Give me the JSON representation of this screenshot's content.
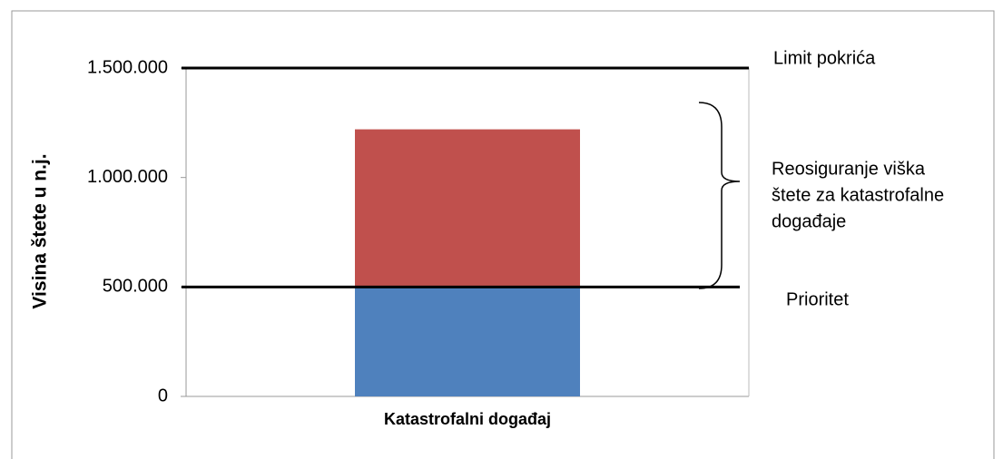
{
  "chart_data": {
    "type": "stacked_bar",
    "y_label": "Visina štete u n.j.",
    "categories": [
      "Katastrofalni događaj"
    ],
    "series": [
      {
        "color": "#4f81bd",
        "values": [
          500000
        ]
      },
      {
        "color": "#c0504d",
        "values": [
          720000
        ]
      }
    ],
    "ylim": [
      0,
      1500000
    ],
    "yticks": [
      0,
      {
        "value": 500000,
        "label": "500.000"
      },
      {
        "value": 1000000,
        "label": "1.000.000"
      },
      {
        "value": 1500000,
        "label": "1.500.000"
      }
    ],
    "reference_lines": [
      {
        "value": 1500000,
        "label": "Limit pokrića"
      },
      {
        "value": 500000,
        "label": "Prioritet"
      }
    ],
    "annotation": [
      "Reosiguranje viška",
      "štete za katastrofalne",
      "događaje"
    ]
  }
}
